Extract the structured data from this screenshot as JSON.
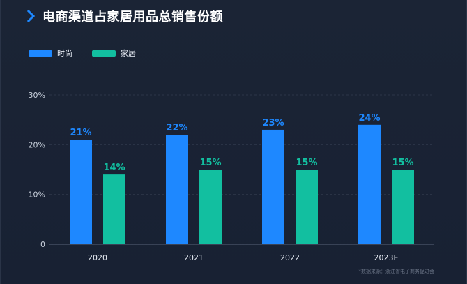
{
  "header": {
    "title": "电商渠道占家居用品总销售份额",
    "icon": "chevron-right-icon",
    "icon_color": "#1e88ff"
  },
  "legend": {
    "items": [
      {
        "label": "时尚",
        "color": "#1e88ff"
      },
      {
        "label": "家居",
        "color": "#12bfa0"
      }
    ],
    "placement": "top-left"
  },
  "footer": {
    "source": "*数据来源：浙江省电子商务促进会"
  },
  "colors": {
    "background": "#1b2435",
    "grid": "#2c3648",
    "axis_text": "#c9d1dd",
    "axis_line": "#59647a"
  },
  "chart_data": {
    "type": "bar",
    "title": "电商渠道占家居用品总销售份额",
    "categories": [
      "2020",
      "2021",
      "2022",
      "2023E"
    ],
    "series": [
      {
        "name": "时尚",
        "values": [
          21,
          22,
          23,
          24
        ],
        "labels": [
          "21%",
          "22%",
          "23%",
          "24%"
        ],
        "color": "#1e88ff"
      },
      {
        "name": "家居",
        "values": [
          14,
          15,
          15,
          15
        ],
        "labels": [
          "14%",
          "15%",
          "15%",
          "15%"
        ],
        "color": "#12bfa0"
      }
    ],
    "yticks": [
      "0",
      "10%",
      "20%",
      "30%"
    ],
    "ytick_values": [
      0,
      10,
      20,
      30
    ],
    "ylim": [
      0,
      30
    ],
    "grid": true
  }
}
